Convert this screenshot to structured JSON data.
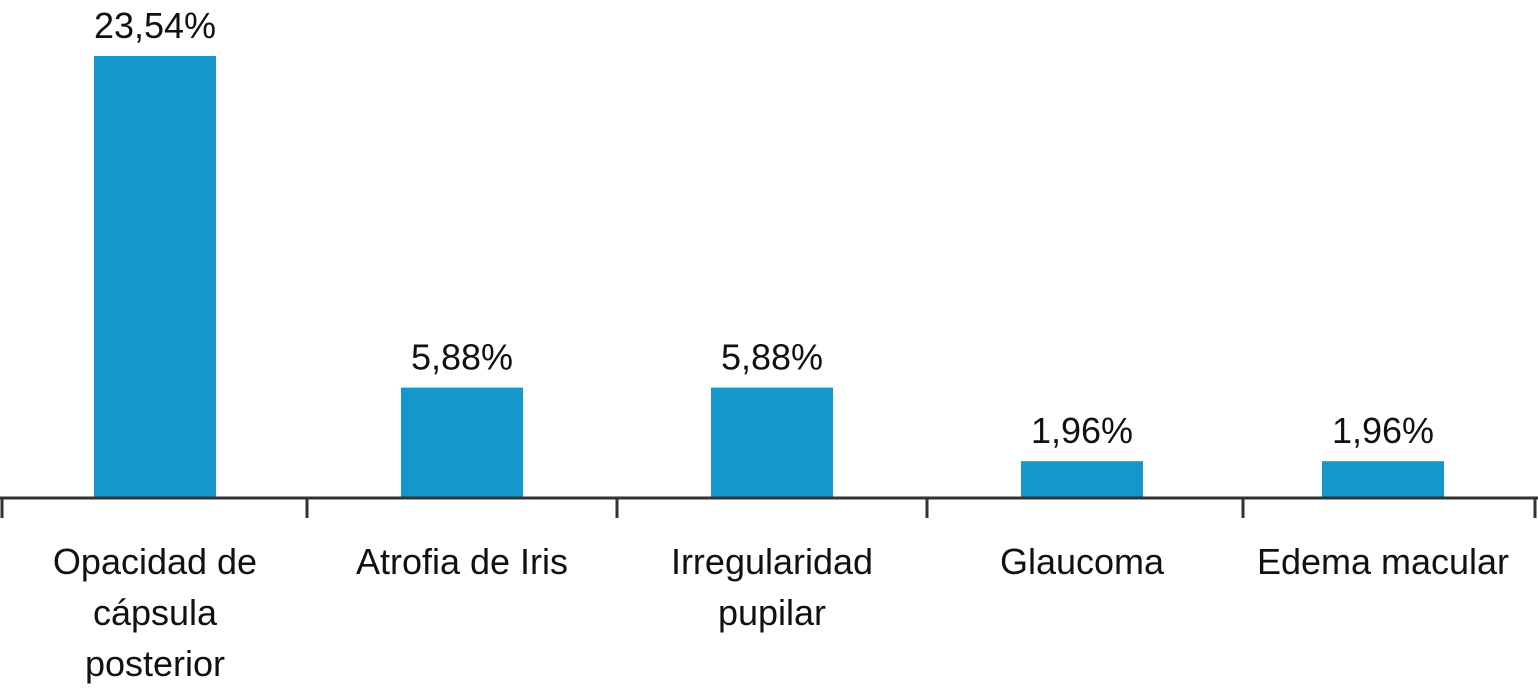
{
  "chart_data": {
    "type": "bar",
    "categories": [
      "Opacidad de cápsula posterior",
      "Atrofia de Iris",
      "Irregularidad pupilar",
      "Glaucoma",
      "Edema macular"
    ],
    "category_lines": [
      [
        "Opacidad de",
        "cápsula",
        "posterior"
      ],
      [
        "Atrofia de Iris"
      ],
      [
        "Irregularidad",
        "pupilar"
      ],
      [
        "Glaucoma"
      ],
      [
        "Edema macular"
      ]
    ],
    "values": [
      23.54,
      5.88,
      5.88,
      1.96,
      1.96
    ],
    "data_labels": [
      "23,54%",
      "5,88%",
      "5,88%",
      "1,96%",
      "1,96%"
    ],
    "ylim": [
      0,
      23.54
    ],
    "grid": false,
    "legend": "none",
    "bar_color": "#1597cb",
    "axis_color": "#333333"
  }
}
